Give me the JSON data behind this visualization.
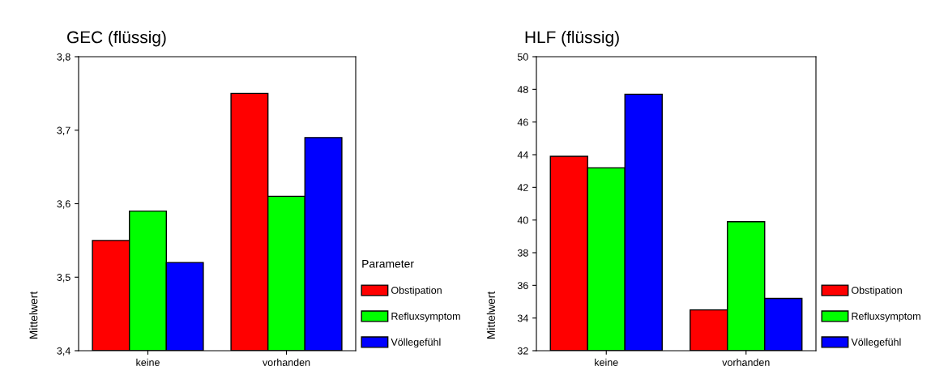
{
  "chart_data": [
    {
      "type": "bar",
      "title": "GEC (flüssig)",
      "ylabel": "Mittelwert",
      "legend_title": "Parameter",
      "legend": "right",
      "grid": false,
      "categories": [
        "keine",
        "vorhanden"
      ],
      "series": [
        {
          "name": "Obstipation",
          "color": "#ff0000",
          "values": [
            3.55,
            3.75
          ]
        },
        {
          "name": "Refluxsymptom",
          "color": "#00ff00",
          "values": [
            3.59,
            3.61
          ]
        },
        {
          "name": "Völlegefühl",
          "color": "#0000ff",
          "values": [
            3.52,
            3.69
          ]
        }
      ],
      "ylim": [
        3.4,
        3.8
      ],
      "yticks": [
        {
          "value": 3.4,
          "label": "3,4"
        },
        {
          "value": 3.5,
          "label": "3,5"
        },
        {
          "value": 3.6,
          "label": "3,6"
        },
        {
          "value": 3.7,
          "label": "3,7"
        },
        {
          "value": 3.8,
          "label": "3,8"
        }
      ]
    },
    {
      "type": "bar",
      "title": "HLF (flüssig)",
      "ylabel": "Mittelwert",
      "legend": "right",
      "grid": false,
      "categories": [
        "keine",
        "vorhanden"
      ],
      "series": [
        {
          "name": "Obstipation",
          "color": "#ff0000",
          "values": [
            43.9,
            34.5
          ]
        },
        {
          "name": "Refluxsymptom",
          "color": "#00ff00",
          "values": [
            43.2,
            39.9
          ]
        },
        {
          "name": "Völlegefühl",
          "color": "#0000ff",
          "values": [
            47.7,
            35.2
          ]
        }
      ],
      "ylim": [
        32,
        50
      ],
      "yticks": [
        32,
        34,
        36,
        38,
        40,
        42,
        44,
        46,
        48,
        50
      ]
    }
  ]
}
